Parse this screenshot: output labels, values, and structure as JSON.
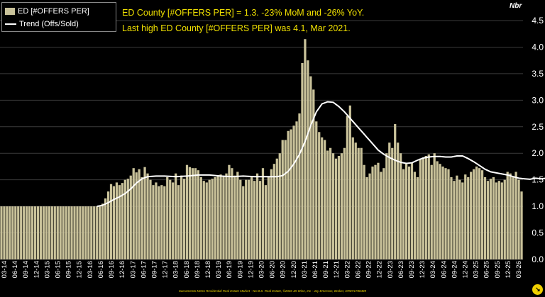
{
  "chart_data": {
    "type": "bar",
    "title": "ED County [#OFFERS PER] = 1.3. -23% MoM and -26% YoY.",
    "subtitle": "Last high ED County [#OFFERS PER] was 4.1, Mar 2021.",
    "unit_label": "Nbr",
    "ylim": [
      0,
      4.5
    ],
    "yticks": [
      "0.0",
      "0.5",
      "1.0",
      "1.5",
      "2.0",
      "2.5",
      "3.0",
      "3.5",
      "4.0",
      "4.5"
    ],
    "grid": true,
    "legend_position": "top-left",
    "colors": {
      "bars": "#c9c29a",
      "trend": "#ffffff",
      "background": "#000000",
      "headline": "#f0e000"
    },
    "xtick_labels": [
      "03-14",
      "06-14",
      "09-14",
      "12-14",
      "03-15",
      "06-15",
      "09-15",
      "12-15",
      "03-16",
      "06-16",
      "09-16",
      "12-16",
      "03-17",
      "06-17",
      "09-17",
      "12-17",
      "03-18",
      "06-18",
      "09-18",
      "12-18",
      "03-19",
      "06-19",
      "09-19",
      "12-19",
      "03-20",
      "06-20",
      "09-20",
      "12-20",
      "03-21",
      "06-21",
      "09-21",
      "12-21",
      "03-22",
      "06-22",
      "09-22",
      "12-22",
      "03-23",
      "06-23",
      "09-23",
      "12-23",
      "03-24",
      "06-24",
      "09-24",
      "12-24",
      "03-25",
      "06-25",
      "09-25",
      "12-25",
      "03-26"
    ],
    "series": [
      {
        "name": "ED [#OFFERS PER]",
        "type": "bar",
        "values": [
          1.0,
          1.0,
          1.0,
          1.0,
          1.0,
          1.0,
          1.0,
          1.0,
          1.0,
          1.0,
          1.0,
          1.0,
          1.0,
          1.0,
          1.0,
          1.0,
          1.0,
          1.0,
          1.0,
          1.0,
          1.0,
          1.0,
          1.0,
          1.0,
          1.0,
          1.0,
          1.0,
          1.0,
          1.0,
          1.0,
          1.0,
          1.0,
          1.0,
          1.0,
          1.0,
          1.0,
          1.05,
          1.15,
          1.28,
          1.42,
          1.38,
          1.45,
          1.4,
          1.44,
          1.5,
          1.52,
          1.58,
          1.72,
          1.64,
          1.7,
          1.55,
          1.74,
          1.62,
          1.5,
          1.4,
          1.45,
          1.38,
          1.4,
          1.38,
          1.55,
          1.5,
          1.45,
          1.62,
          1.4,
          1.58,
          1.52,
          1.78,
          1.74,
          1.72,
          1.72,
          1.68,
          1.55,
          1.48,
          1.45,
          1.5,
          1.52,
          1.55,
          1.58,
          1.6,
          1.56,
          1.62,
          1.78,
          1.72,
          1.58,
          1.65,
          1.5,
          1.38,
          1.5,
          1.5,
          1.55,
          1.48,
          1.62,
          1.48,
          1.72,
          1.4,
          1.55,
          1.7,
          1.8,
          1.9,
          2.0,
          2.25,
          2.25,
          2.42,
          2.45,
          2.52,
          2.6,
          2.75,
          3.7,
          4.15,
          3.75,
          3.45,
          3.2,
          2.6,
          2.4,
          2.3,
          2.25,
          2.05,
          2.1,
          2.0,
          1.9,
          1.95,
          2.0,
          2.1,
          2.7,
          2.9,
          2.3,
          2.2,
          2.1,
          2.1,
          1.78,
          1.55,
          1.62,
          1.75,
          1.78,
          1.82,
          1.65,
          1.72,
          2.0,
          2.2,
          2.1,
          2.55,
          2.2,
          2.0,
          1.7,
          1.8,
          1.75,
          1.82,
          1.65,
          1.55,
          1.9,
          1.92,
          1.95,
          1.98,
          1.78,
          2.0,
          1.85,
          1.8,
          1.75,
          1.72,
          1.7,
          1.55,
          1.48,
          1.58,
          1.5,
          1.45,
          1.6,
          1.55,
          1.65,
          1.7,
          1.75,
          1.72,
          1.68,
          1.55,
          1.48,
          1.52,
          1.55,
          1.45,
          1.48,
          1.45,
          1.5,
          1.65,
          1.62,
          1.55,
          1.65,
          1.5,
          1.28
        ]
      },
      {
        "name": "Trend (Offs/Sold)",
        "type": "line",
        "points": [
          [
            34,
            1.0
          ],
          [
            36,
            1.02
          ],
          [
            38,
            1.07
          ],
          [
            40,
            1.13
          ],
          [
            42,
            1.18
          ],
          [
            44,
            1.24
          ],
          [
            46,
            1.33
          ],
          [
            48,
            1.44
          ],
          [
            50,
            1.52
          ],
          [
            52,
            1.56
          ],
          [
            55,
            1.57
          ],
          [
            58,
            1.57
          ],
          [
            62,
            1.56
          ],
          [
            66,
            1.57
          ],
          [
            70,
            1.59
          ],
          [
            74,
            1.59
          ],
          [
            78,
            1.57
          ],
          [
            82,
            1.56
          ],
          [
            86,
            1.57
          ],
          [
            90,
            1.56
          ],
          [
            94,
            1.56
          ],
          [
            98,
            1.56
          ],
          [
            100,
            1.58
          ],
          [
            102,
            1.66
          ],
          [
            104,
            1.8
          ],
          [
            106,
            1.98
          ],
          [
            108,
            2.22
          ],
          [
            110,
            2.52
          ],
          [
            112,
            2.78
          ],
          [
            114,
            2.93
          ],
          [
            116,
            2.97
          ],
          [
            118,
            2.96
          ],
          [
            120,
            2.88
          ],
          [
            122,
            2.78
          ],
          [
            124,
            2.66
          ],
          [
            126,
            2.54
          ],
          [
            128,
            2.42
          ],
          [
            130,
            2.3
          ],
          [
            132,
            2.18
          ],
          [
            134,
            2.06
          ],
          [
            136,
            1.98
          ],
          [
            138,
            1.92
          ],
          [
            140,
            1.87
          ],
          [
            142,
            1.83
          ],
          [
            144,
            1.81
          ],
          [
            146,
            1.82
          ],
          [
            148,
            1.87
          ],
          [
            150,
            1.91
          ],
          [
            152,
            1.93
          ],
          [
            154,
            1.94
          ],
          [
            156,
            1.94
          ],
          [
            158,
            1.93
          ],
          [
            160,
            1.93
          ],
          [
            162,
            1.95
          ],
          [
            164,
            1.95
          ],
          [
            166,
            1.9
          ],
          [
            168,
            1.84
          ],
          [
            170,
            1.77
          ],
          [
            172,
            1.7
          ],
          [
            174,
            1.65
          ],
          [
            176,
            1.63
          ],
          [
            178,
            1.61
          ],
          [
            180,
            1.59
          ],
          [
            182,
            1.56
          ],
          [
            184,
            1.53
          ],
          [
            186,
            1.52
          ],
          [
            188,
            1.51
          ],
          [
            190,
            1.53
          ],
          [
            192,
            1.52
          ],
          [
            194,
            1.53
          ],
          [
            196,
            1.54
          ],
          [
            198,
            1.5
          ]
        ]
      }
    ]
  },
  "legend": {
    "bar_label": "ED [#OFFERS PER]",
    "line_label": "Trend (Offs/Sold)"
  },
  "footer": "Sacramento Metro Residential Real Estate Market - No B.S. Real Estate, ©2026 JD Wise, Inc - Jay Emerson, Broker, DRE#1788489"
}
